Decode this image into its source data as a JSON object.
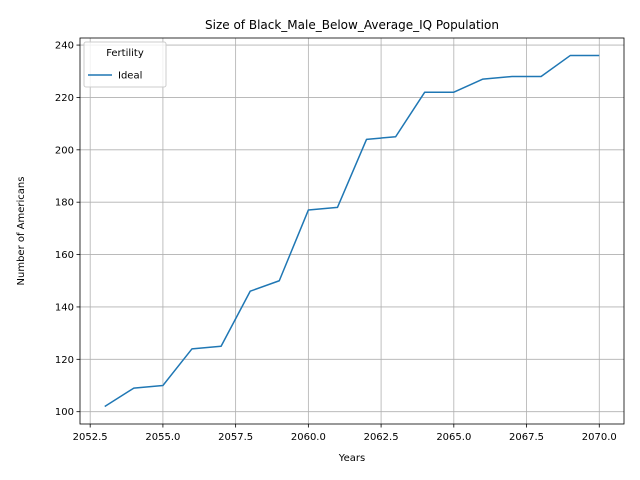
{
  "chart_data": {
    "type": "line",
    "title": "Size of Black_Male_Below_Average_IQ Population",
    "xlabel": "Years",
    "ylabel": "Number of Americans",
    "x": [
      2053,
      2054,
      2055,
      2056,
      2057,
      2058,
      2059,
      2060,
      2061,
      2062,
      2063,
      2064,
      2065,
      2066,
      2067,
      2068,
      2069,
      2070
    ],
    "series": [
      {
        "name": "Ideal",
        "color": "#1f77b4",
        "values": [
          102,
          109,
          110,
          124,
          125,
          146,
          150,
          177,
          178,
          204,
          205,
          222,
          222,
          227,
          228,
          228,
          236,
          236
        ]
      }
    ],
    "xlim": [
      2052.15,
      2070.85
    ],
    "ylim": [
      95.3,
      242.7
    ],
    "x_ticks": [
      2052.5,
      2055.0,
      2057.5,
      2060.0,
      2062.5,
      2065.0,
      2067.5,
      2070.0
    ],
    "x_tick_labels": [
      "2052.5",
      "2055.0",
      "2057.5",
      "2060.0",
      "2062.5",
      "2065.0",
      "2067.5",
      "2070.0"
    ],
    "y_ticks": [
      100,
      120,
      140,
      160,
      180,
      200,
      220,
      240
    ],
    "y_tick_labels": [
      "100",
      "120",
      "140",
      "160",
      "180",
      "200",
      "220",
      "240"
    ],
    "grid": true,
    "legend": {
      "title": "Fertility",
      "placement": "top-left"
    }
  }
}
